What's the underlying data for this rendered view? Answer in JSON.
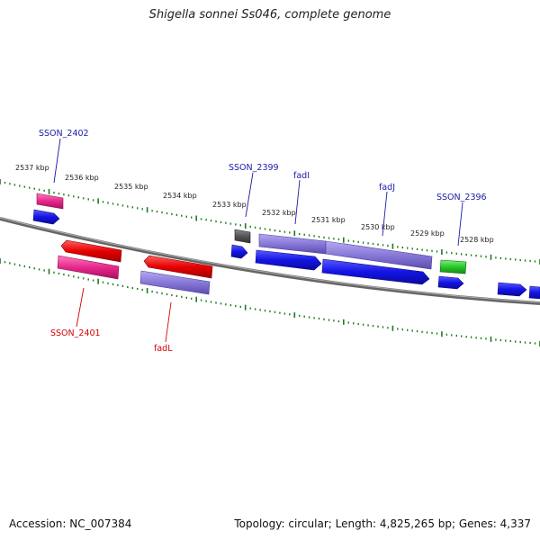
{
  "title": "Shigella sonnei Ss046, complete genome",
  "footer": {
    "accession": "Accession: NC_007384",
    "summary": "Topology: circular; Length: 4,825,265 bp; Genes: 4,337"
  },
  "tick_labels": [
    "2537 kbp",
    "2536 kbp",
    "2535 kbp",
    "2534 kbp",
    "2533 kbp",
    "2532 kbp",
    "2531 kbp",
    "2530 kbp",
    "2529 kbp",
    "2528 kbp"
  ],
  "gene_labels": {
    "sson_2402": "SSON_2402",
    "sson_2399": "SSON_2399",
    "fadi": "fadI",
    "fadj": "fadJ",
    "sson_2396": "SSON_2396",
    "sson_2401": "SSON_2401",
    "fadl": "fadL"
  },
  "colors": {
    "backbone": "#808080",
    "ticks": "#1e7a1e",
    "cds_blue": "#1414e6",
    "feature_purple": "#8878d8",
    "feature_red": "#e60000",
    "feature_pink": "#e6288c",
    "feature_green": "#28c828",
    "feature_gray": "#555555"
  }
}
